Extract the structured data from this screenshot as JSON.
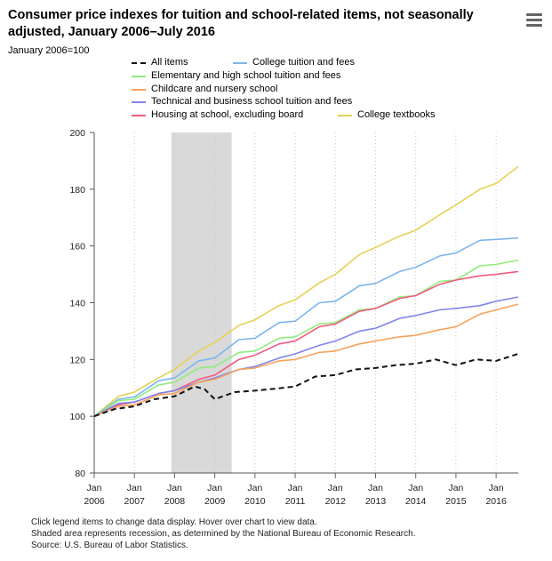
{
  "header": {
    "title": "Consumer price indexes for tuition and school-related items, not seasonally adjusted, January 2006–July 2016",
    "subtitle": "January 2006=100",
    "menu_icon": "hamburger-menu-icon"
  },
  "footer": {
    "note1": "Click legend items to change data display. Hover over chart to view data.",
    "note2": "Shaded area represents recession, as determined by the National Bureau of Economic Research.",
    "note3": "Source: U.S. Bureau of Labor Statistics."
  },
  "chart_data": {
    "type": "line",
    "title": "Consumer price indexes for tuition and school-related items, not seasonally adjusted, January 2006–July 2016",
    "ylabel": "January 2006=100",
    "xlabel": "",
    "ylim": [
      80,
      200
    ],
    "yticks": [
      80,
      100,
      120,
      140,
      160,
      180,
      200
    ],
    "xlim": [
      2006.0,
      2016.55
    ],
    "xticks": [
      {
        "month": "Jan",
        "year": "2006",
        "x": 2006.0
      },
      {
        "month": "Jan",
        "year": "2007",
        "x": 2007.0
      },
      {
        "month": "Jan",
        "year": "2008",
        "x": 2008.0
      },
      {
        "month": "Jan",
        "year": "2009",
        "x": 2009.0
      },
      {
        "month": "Jan",
        "year": "2010",
        "x": 2010.0
      },
      {
        "month": "Jan",
        "year": "2011",
        "x": 2011.0
      },
      {
        "month": "Jan",
        "year": "2012",
        "x": 2012.0
      },
      {
        "month": "Jan",
        "year": "2013",
        "x": 2013.0
      },
      {
        "month": "Jan",
        "year": "2014",
        "x": 2014.0
      },
      {
        "month": "Jan",
        "year": "2015",
        "x": 2015.0
      },
      {
        "month": "Jan",
        "year": "2016",
        "x": 2016.0
      }
    ],
    "grid": "vertical dotted",
    "recession": {
      "start": 2007.92,
      "end": 2009.42
    },
    "series": [
      {
        "name": "All items",
        "color": "#111111",
        "dash": true,
        "x": [
          2006.0,
          2006.5,
          2007.0,
          2007.5,
          2008.0,
          2008.5,
          2008.75,
          2009.0,
          2009.5,
          2010.0,
          2010.5,
          2011.0,
          2011.5,
          2012.0,
          2012.5,
          2013.0,
          2013.5,
          2014.0,
          2014.5,
          2015.0,
          2015.5,
          2016.0,
          2016.55
        ],
        "values": [
          100.0,
          102.5,
          103.5,
          106.0,
          107.0,
          110.5,
          109.5,
          106.0,
          108.5,
          109.0,
          109.7,
          110.5,
          114.0,
          114.5,
          116.5,
          117.0,
          118.0,
          118.5,
          120.0,
          118.0,
          120.0,
          119.5,
          122.0
        ]
      },
      {
        "name": "College tuition and fees",
        "color": "#7cb5ec",
        "x": [
          2006.0,
          2006.6,
          2007.0,
          2007.6,
          2008.0,
          2008.6,
          2009.0,
          2009.6,
          2010.0,
          2010.6,
          2011.0,
          2011.6,
          2012.0,
          2012.6,
          2013.0,
          2013.6,
          2014.0,
          2014.6,
          2015.0,
          2015.6,
          2016.0,
          2016.55
        ],
        "values": [
          100.0,
          106.0,
          106.8,
          112.5,
          113.5,
          119.5,
          120.5,
          127.0,
          127.5,
          133.0,
          133.5,
          140.0,
          140.5,
          146.0,
          146.8,
          151.0,
          152.5,
          156.5,
          157.5,
          162.0,
          162.3,
          162.8
        ]
      },
      {
        "name": "Elementary and high school tuition and fees",
        "color": "#90ed7d",
        "x": [
          2006.0,
          2006.6,
          2007.0,
          2007.6,
          2008.0,
          2008.6,
          2009.0,
          2009.6,
          2010.0,
          2010.6,
          2011.0,
          2011.6,
          2012.0,
          2012.6,
          2013.0,
          2013.6,
          2014.0,
          2014.6,
          2015.0,
          2015.6,
          2016.0,
          2016.55
        ],
        "values": [
          100.0,
          105.5,
          106.0,
          111.0,
          112.0,
          117.0,
          117.5,
          122.5,
          123.0,
          127.5,
          128.0,
          132.5,
          133.0,
          137.5,
          138.0,
          142.0,
          142.5,
          147.5,
          148.0,
          153.0,
          153.5,
          155.0
        ]
      },
      {
        "name": "Childcare and nursery school",
        "color": "#f7a35c",
        "x": [
          2006.0,
          2006.6,
          2007.0,
          2007.6,
          2008.0,
          2008.6,
          2009.0,
          2009.6,
          2010.0,
          2010.6,
          2011.0,
          2011.6,
          2012.0,
          2012.6,
          2013.0,
          2013.6,
          2014.0,
          2014.6,
          2015.0,
          2015.6,
          2016.0,
          2016.55
        ],
        "values": [
          100.0,
          103.5,
          104.0,
          107.5,
          108.0,
          112.0,
          113.0,
          116.5,
          117.0,
          119.5,
          120.0,
          122.5,
          123.0,
          125.5,
          126.5,
          128.0,
          128.5,
          130.5,
          131.5,
          136.0,
          137.5,
          139.5
        ]
      },
      {
        "name": "Technical and business school tuition and fees",
        "color": "#8085e9",
        "x": [
          2006.0,
          2006.6,
          2007.0,
          2007.6,
          2008.0,
          2008.6,
          2009.0,
          2009.6,
          2010.0,
          2010.6,
          2011.0,
          2011.6,
          2012.0,
          2012.6,
          2013.0,
          2013.6,
          2014.0,
          2014.6,
          2015.0,
          2015.6,
          2016.0,
          2016.55
        ],
        "values": [
          100.0,
          104.5,
          105.0,
          108.0,
          109.0,
          112.0,
          113.5,
          116.5,
          117.5,
          120.5,
          122.0,
          125.0,
          126.5,
          130.0,
          131.0,
          134.5,
          135.5,
          137.5,
          138.0,
          139.0,
          140.5,
          142.0
        ]
      },
      {
        "name": "Housing at school, excluding board",
        "color": "#f15c80",
        "x": [
          2006.0,
          2006.6,
          2007.0,
          2007.6,
          2008.0,
          2008.6,
          2009.0,
          2009.6,
          2010.0,
          2010.6,
          2011.0,
          2011.6,
          2012.0,
          2012.6,
          2013.0,
          2013.6,
          2014.0,
          2014.6,
          2015.0,
          2015.6,
          2016.0,
          2016.55
        ],
        "values": [
          100.0,
          104.0,
          105.0,
          108.0,
          109.0,
          113.0,
          114.5,
          120.0,
          121.5,
          125.5,
          126.5,
          131.5,
          132.5,
          137.0,
          138.0,
          141.5,
          142.5,
          146.5,
          148.0,
          149.5,
          150.0,
          151.0
        ]
      },
      {
        "name": "College textbooks",
        "color": "#e4d354",
        "x": [
          2006.0,
          2006.6,
          2007.0,
          2007.6,
          2008.0,
          2008.6,
          2009.0,
          2009.6,
          2010.0,
          2010.6,
          2011.0,
          2011.6,
          2012.0,
          2012.6,
          2013.0,
          2013.6,
          2014.0,
          2014.6,
          2015.0,
          2015.6,
          2016.0,
          2016.55
        ],
        "values": [
          100.0,
          107.0,
          108.5,
          113.5,
          116.5,
          123.0,
          126.0,
          132.0,
          134.0,
          139.0,
          141.0,
          147.0,
          150.0,
          157.0,
          159.5,
          163.5,
          165.5,
          171.0,
          174.5,
          180.0,
          182.0,
          188.0
        ]
      }
    ]
  },
  "legend": {
    "items": [
      {
        "series": 0,
        "label": "All items"
      },
      {
        "series": 1,
        "label": "College tuition and fees"
      },
      {
        "series": 2,
        "label": "Elementary and high school tuition and fees"
      },
      {
        "series": 3,
        "label": "Childcare and nursery school"
      },
      {
        "series": 4,
        "label": "Technical and business school tuition and fees"
      },
      {
        "series": 5,
        "label": "Housing at school, excluding board"
      },
      {
        "series": 6,
        "label": "College textbooks"
      }
    ]
  }
}
